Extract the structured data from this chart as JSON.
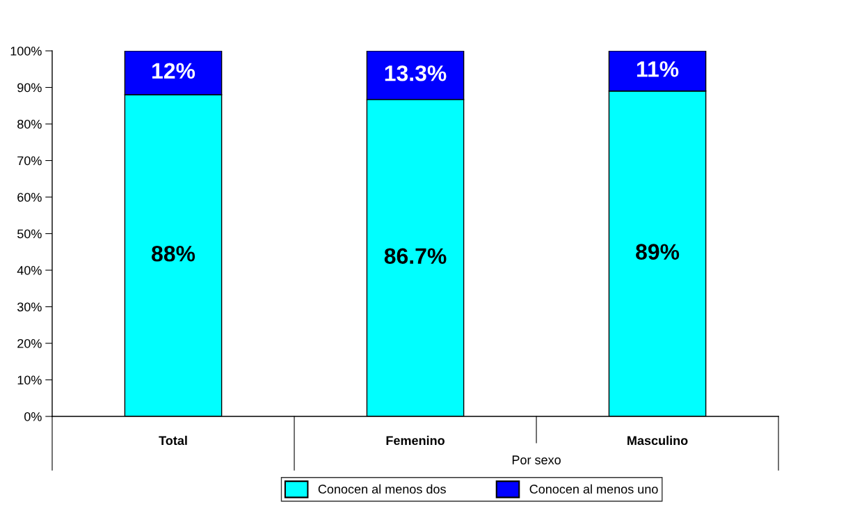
{
  "chart_data": {
    "type": "bar",
    "stacked": true,
    "categories": [
      "Total",
      "Femenino",
      "Masculino"
    ],
    "series": [
      {
        "name": "Conocen al menos dos",
        "color": "#00ffff",
        "values": [
          88,
          86.7,
          89
        ],
        "value_labels": [
          "88%",
          "86.7%",
          "89%"
        ]
      },
      {
        "name": "Conocen al menos uno",
        "color": "#0000ff",
        "values": [
          12,
          13.3,
          11
        ],
        "value_labels": [
          "12%",
          "13.3%",
          "11%"
        ]
      }
    ],
    "ylim": [
      0,
      100
    ],
    "yticks": [
      {
        "value": 0,
        "label": "0%"
      },
      {
        "value": 10,
        "label": "10%"
      },
      {
        "value": 20,
        "label": "20%"
      },
      {
        "value": 30,
        "label": "30%"
      },
      {
        "value": 40,
        "label": "40%"
      },
      {
        "value": 50,
        "label": "50%"
      },
      {
        "value": 60,
        "label": "60%"
      },
      {
        "value": 70,
        "label": "70%"
      },
      {
        "value": 80,
        "label": "80%"
      },
      {
        "value": 90,
        "label": "90%"
      },
      {
        "value": 100,
        "label": "100%"
      }
    ],
    "grid": false,
    "legend": "bottom",
    "annotations": [
      "Por sexo"
    ]
  }
}
